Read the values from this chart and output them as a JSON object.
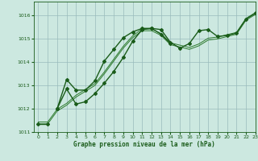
{
  "xlabel": "Graphe pression niveau de la mer (hPa)",
  "xlim": [
    -0.5,
    23
  ],
  "ylim": [
    1011,
    1016.6
  ],
  "yticks": [
    1011,
    1012,
    1013,
    1014,
    1015,
    1016
  ],
  "xticks": [
    0,
    1,
    2,
    3,
    4,
    5,
    6,
    7,
    8,
    9,
    10,
    11,
    12,
    13,
    14,
    15,
    16,
    17,
    18,
    19,
    20,
    21,
    22,
    23
  ],
  "bg_color": "#cce8e0",
  "grid_color": "#99bbbb",
  "line_dark": "#1a5c1a",
  "line_mid": "#2d7a2d",
  "hours": [
    0,
    1,
    2,
    3,
    4,
    5,
    6,
    7,
    8,
    9,
    10,
    11,
    12,
    13,
    14,
    15,
    16,
    17,
    18,
    19,
    20,
    21,
    22,
    23
  ],
  "line1_h": [
    0,
    1,
    2,
    3,
    4,
    5,
    6,
    7,
    8,
    9,
    10,
    11,
    12,
    13,
    14,
    15,
    16,
    17,
    18,
    19,
    20,
    21,
    22,
    23
  ],
  "line1_v": [
    1011.35,
    1011.35,
    1011.9,
    1012.15,
    1012.5,
    1012.75,
    1013.0,
    1013.5,
    1014.05,
    1014.6,
    1015.05,
    1015.35,
    1015.35,
    1015.15,
    1014.75,
    1014.65,
    1014.55,
    1014.7,
    1014.95,
    1015.0,
    1015.1,
    1015.2,
    1015.8,
    1016.05
  ],
  "line2_h": [
    0,
    1,
    2,
    3,
    4,
    5,
    6,
    7,
    8,
    9,
    10,
    11,
    12,
    13,
    14,
    15,
    16,
    17,
    18,
    19,
    20,
    21,
    22,
    23
  ],
  "line2_v": [
    1011.35,
    1011.35,
    1011.9,
    1012.15,
    1012.5,
    1012.75,
    1013.0,
    1013.5,
    1014.05,
    1014.6,
    1015.05,
    1015.35,
    1015.35,
    1015.15,
    1014.75,
    1014.65,
    1014.55,
    1014.7,
    1014.95,
    1015.0,
    1015.1,
    1015.2,
    1015.8,
    1016.05
  ],
  "line3_h": [
    2,
    3,
    4,
    5,
    6,
    7,
    8,
    9,
    10,
    11,
    12,
    13,
    14
  ],
  "line3_v": [
    1012.0,
    1013.25,
    1012.8,
    1012.8,
    1013.2,
    1014.05,
    1014.55,
    1015.05,
    1015.3,
    1015.45,
    1015.45,
    1015.2,
    1014.8
  ],
  "line4_h": [
    2,
    3,
    4,
    5,
    6,
    7,
    8,
    9,
    10,
    11,
    12,
    13,
    14,
    15,
    16,
    17,
    18,
    19,
    20,
    21,
    22,
    23
  ],
  "line4_v": [
    1012.0,
    1012.85,
    1012.2,
    1012.3,
    1012.65,
    1013.1,
    1013.6,
    1014.2,
    1014.9,
    1015.4,
    1015.45,
    1015.4,
    1014.85,
    1014.6,
    1014.8,
    1015.35,
    1015.4,
    1015.1,
    1015.15,
    1015.25,
    1015.85,
    1016.1
  ]
}
